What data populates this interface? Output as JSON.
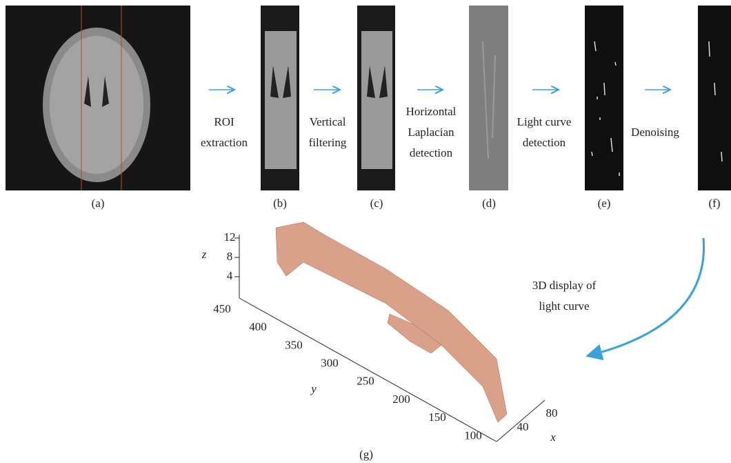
{
  "panel_labels": [
    "(a)",
    "(b)",
    "(c)",
    "(d)",
    "(e)",
    "(f)",
    "(g)"
  ],
  "steps": [
    {
      "lines": [
        "ROI",
        "extraction"
      ]
    },
    {
      "lines": [
        "Vertical",
        "filtering"
      ]
    },
    {
      "lines": [
        "Horizontal",
        "Laplacian",
        "detection"
      ]
    },
    {
      "lines": [
        "Light curve",
        "detection"
      ]
    },
    {
      "lines": [
        "Denoising"
      ]
    }
  ],
  "display_note": {
    "lines": [
      "3D display of",
      "light curve"
    ]
  },
  "plot_3d": {
    "z_label": "z",
    "y_label": "y",
    "x_label": "x",
    "z_ticks": [
      12,
      8,
      4
    ],
    "y_ticks": [
      450,
      400,
      350,
      300,
      250,
      200,
      150,
      100
    ],
    "x_ticks": [
      40,
      80
    ]
  }
}
